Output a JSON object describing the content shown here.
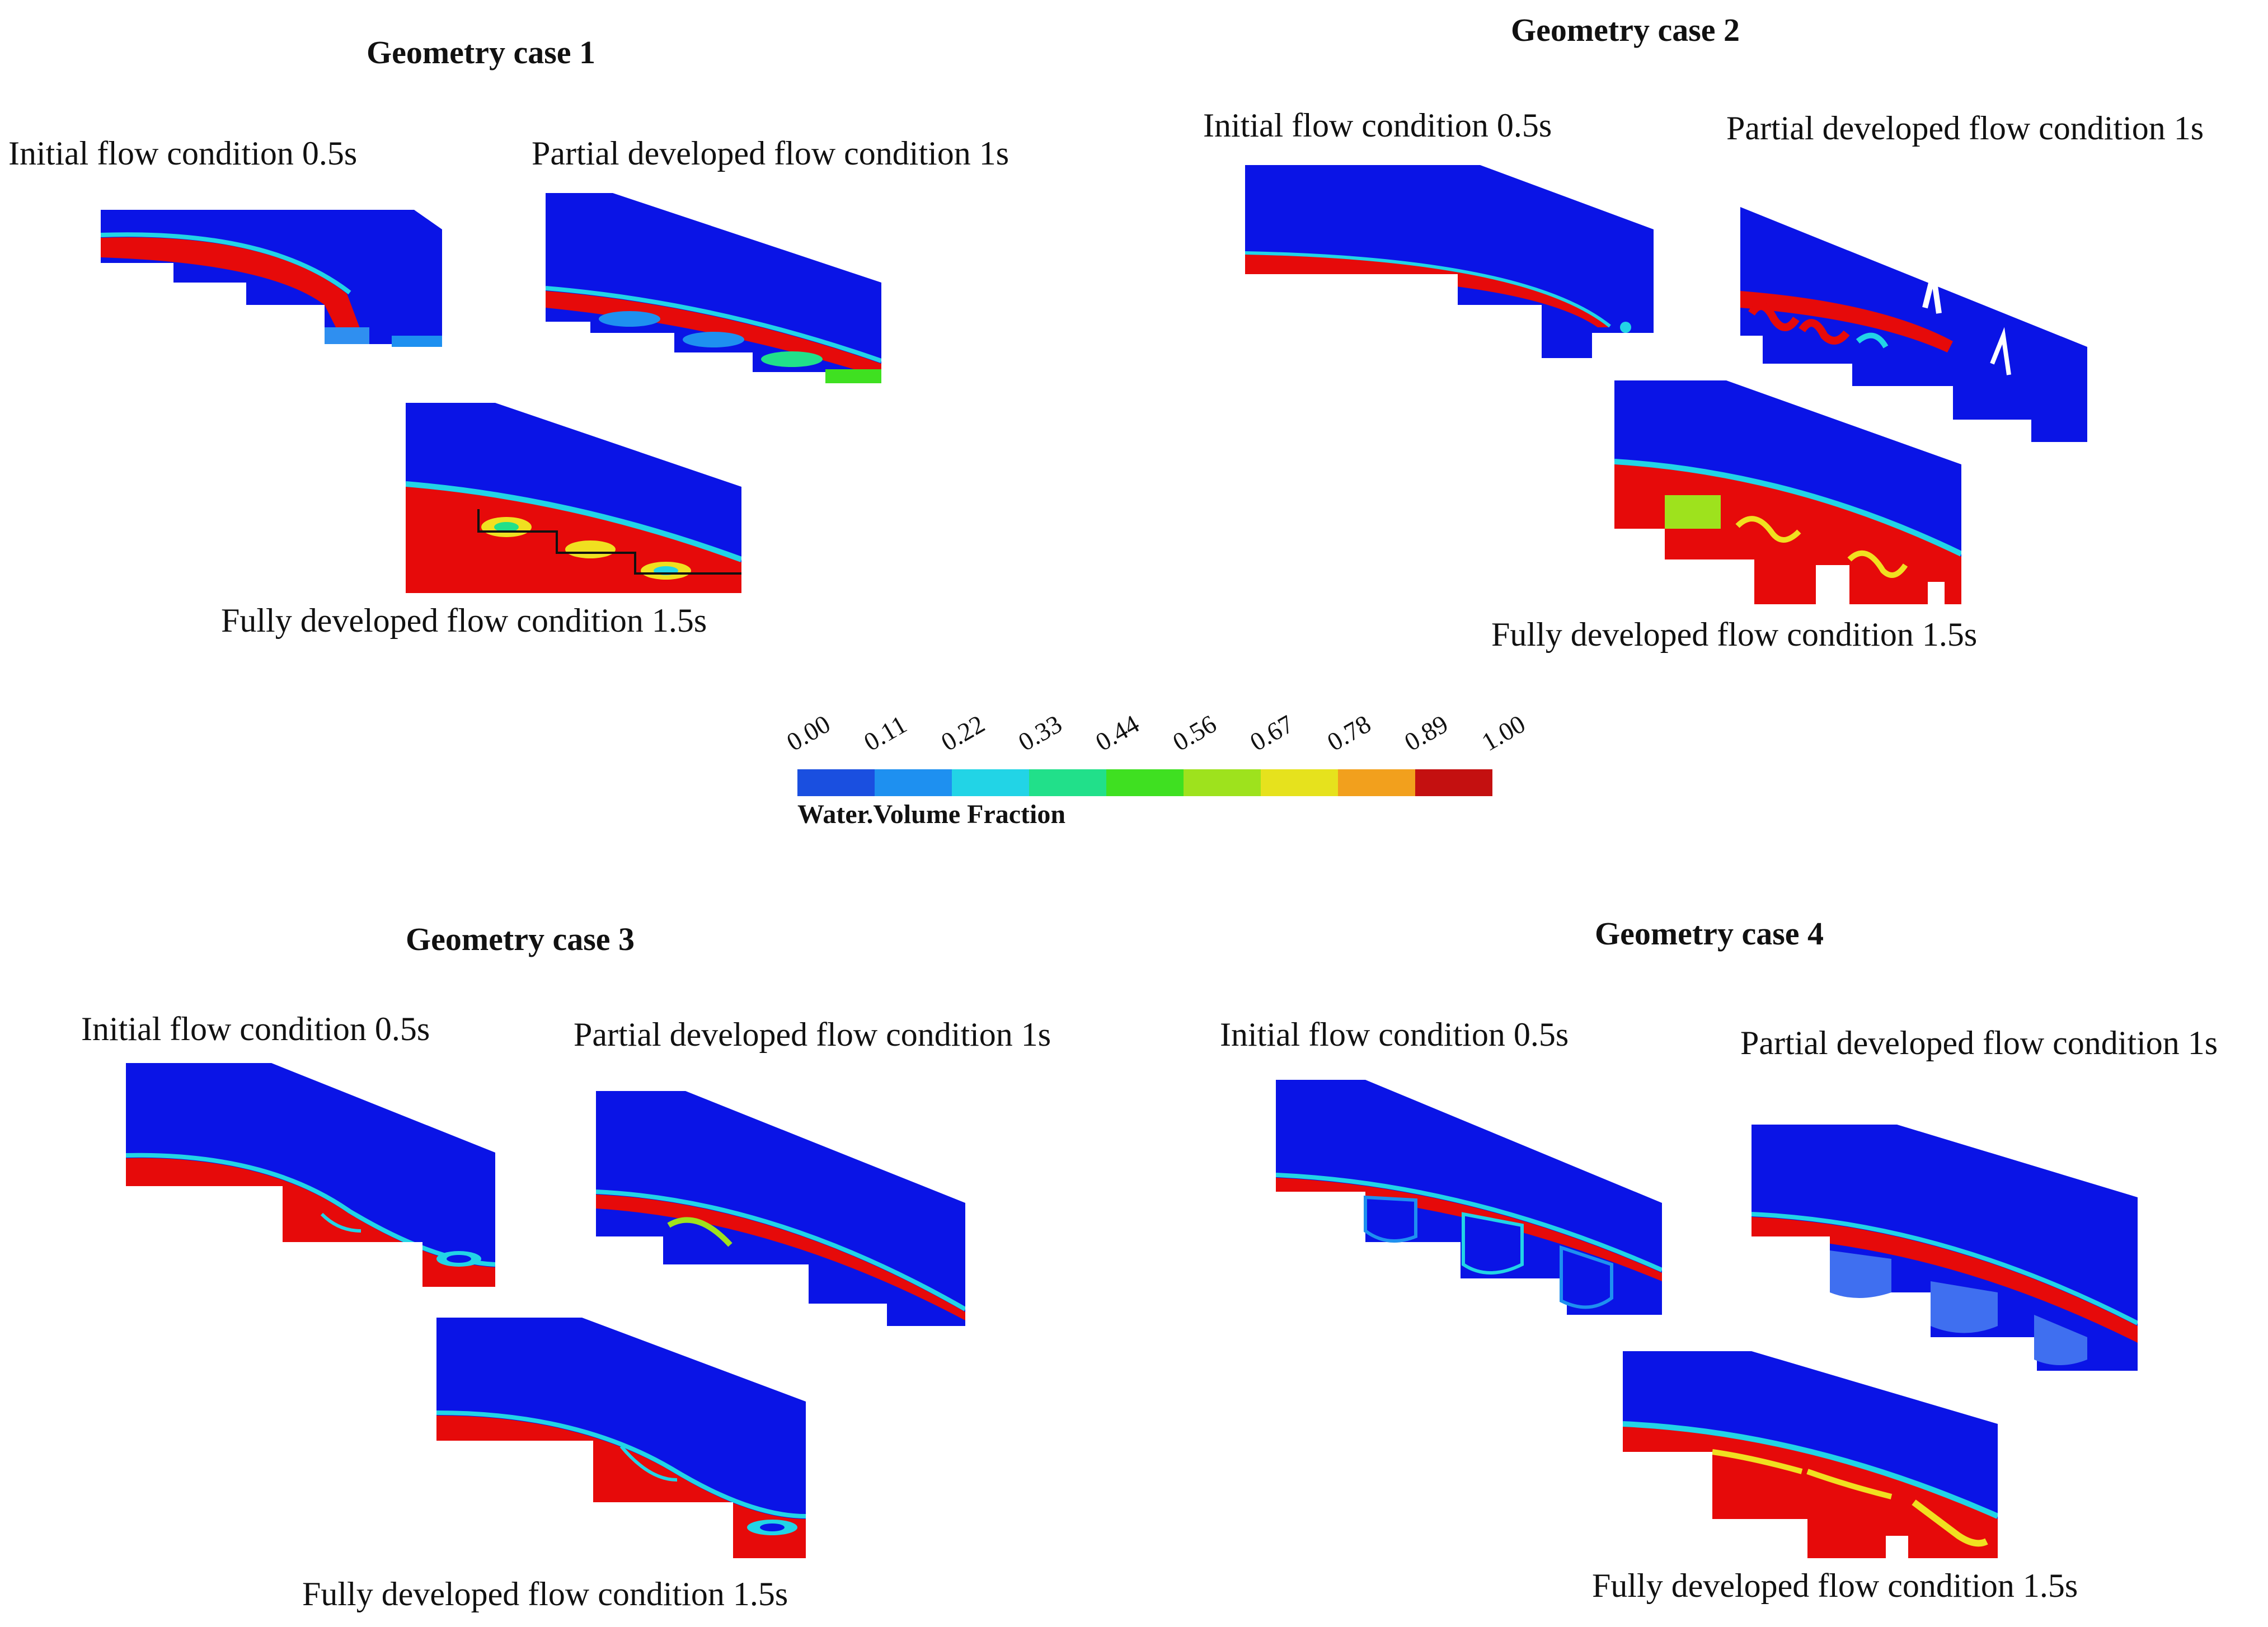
{
  "legend": {
    "title": "Water.Volume Fraction",
    "ticks": [
      "0.00",
      "0.11",
      "0.22",
      "0.33",
      "0.44",
      "0.56",
      "0.67",
      "0.78",
      "0.89",
      "1.00"
    ],
    "colors": [
      "#1a4fe0",
      "#1e90f0",
      "#22d4e6",
      "#21e08a",
      "#3fe021",
      "#9ee21d",
      "#e6e21d",
      "#f2a01d",
      "#c41010"
    ]
  },
  "cases": [
    {
      "title": "Geometry case 1",
      "initial": "Initial flow condition 0.5s",
      "partial": "Partial developed flow condition 1s",
      "full": "Fully developed flow condition 1.5s"
    },
    {
      "title": "Geometry case 2",
      "initial": "Initial flow condition 0.5s",
      "partial": "Partial developed flow condition 1s",
      "full": "Fully developed flow condition 1.5s"
    },
    {
      "title": "Geometry case 3",
      "initial": "Initial flow condition 0.5s",
      "partial": "Partial developed flow condition 1s",
      "full": "Fully developed flow condition 1.5s"
    },
    {
      "title": "Geometry case 4",
      "initial": "Initial flow condition 0.5s",
      "partial": "Partial developed flow condition 1s",
      "full": "Fully developed flow condition 1.5s"
    }
  ],
  "palette": {
    "air": "#0a14e6",
    "water": "#e60a0a",
    "interface": "#22d4e6",
    "mixed": "#f0e020"
  }
}
